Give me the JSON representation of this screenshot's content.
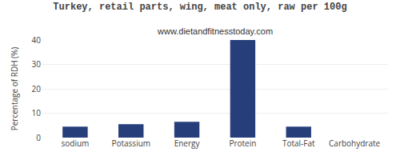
{
  "chart_data": {
    "type": "bar",
    "title": "Turkey, retail parts, wing, meat only, raw per 100g",
    "subtitle": "www.dietandfitnesstoday.com",
    "ylabel": "Percentage of RDH (%)",
    "categories": [
      "sodium",
      "Potassium",
      "Energy",
      "Protein",
      "Total-Fat",
      "Carbohydrate"
    ],
    "values": [
      4.5,
      5.5,
      6.5,
      40,
      4.5,
      0
    ],
    "color": "#263F7A",
    "ylim": [
      0,
      40
    ],
    "yticks": [
      0,
      10,
      20,
      30,
      40
    ],
    "grid": true
  }
}
